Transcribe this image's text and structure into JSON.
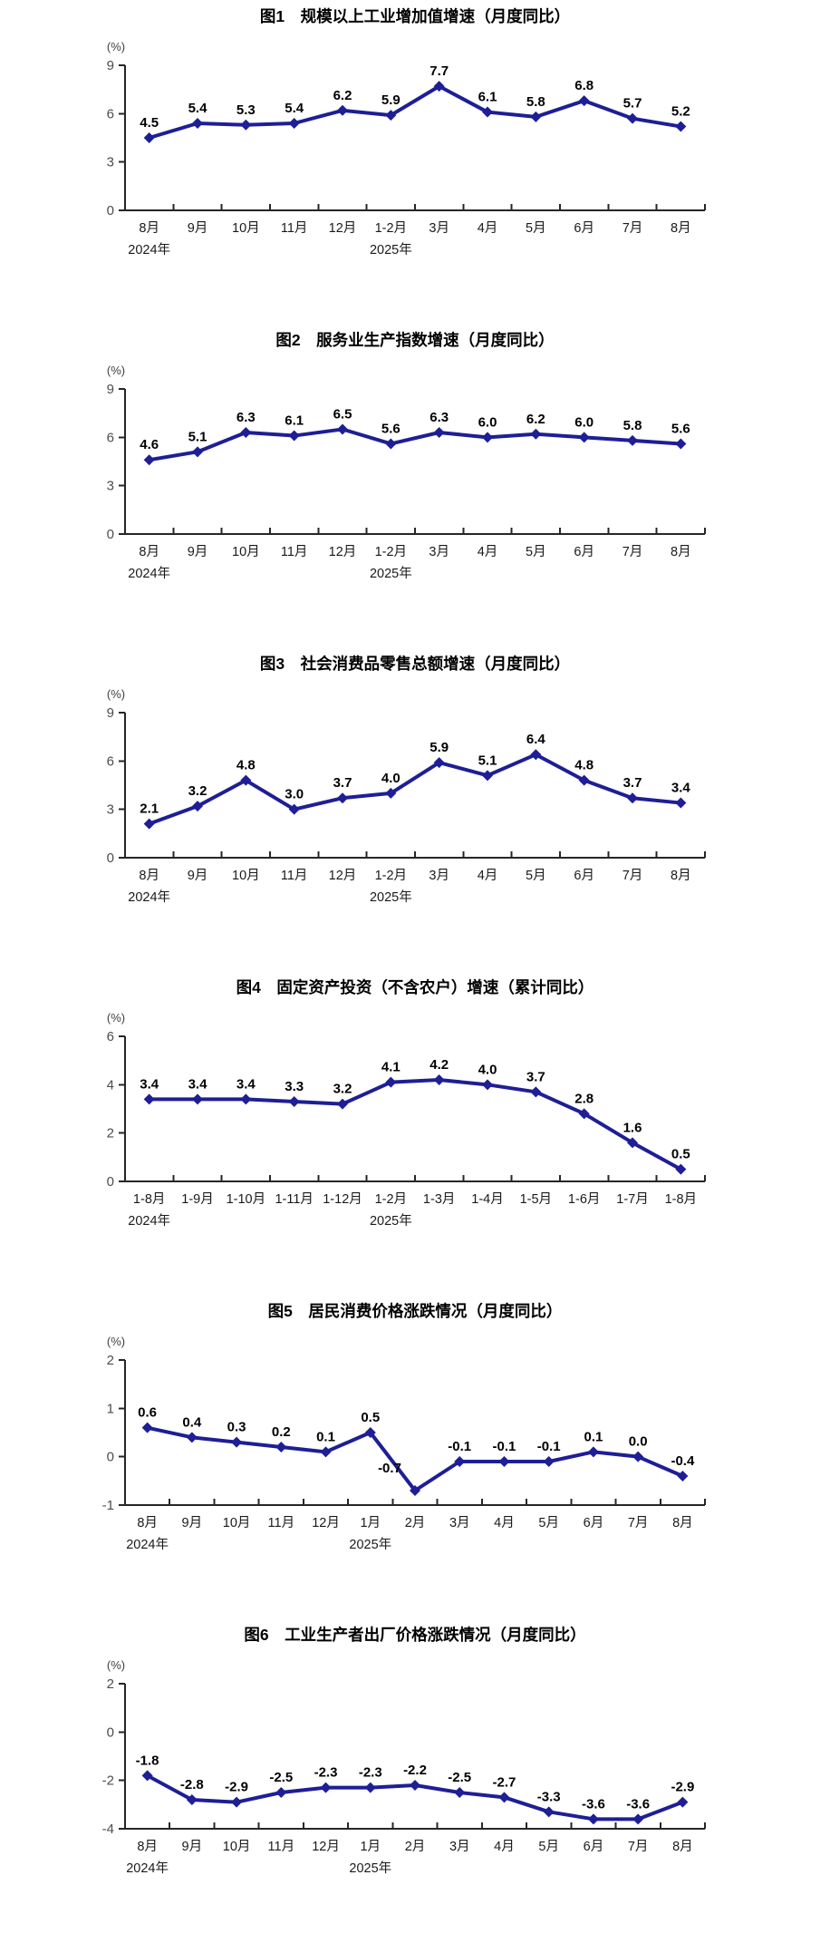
{
  "page": {
    "background": "#ffffff",
    "accent_line_color": "#1e1e96"
  },
  "chart_data": [
    {
      "type": "line",
      "title": "图1　规模以上工业增加值增速（月度同比）",
      "unit": "(%)",
      "categories": [
        "8月",
        "9月",
        "10月",
        "11月",
        "12月",
        "1-2月",
        "3月",
        "4月",
        "5月",
        "6月",
        "7月",
        "8月"
      ],
      "year_labels": [
        {
          "index": 0,
          "text": "2024年"
        },
        {
          "index": 5,
          "text": "2025年"
        }
      ],
      "values": [
        4.5,
        5.4,
        5.3,
        5.4,
        6.2,
        5.9,
        7.7,
        6.1,
        5.8,
        6.8,
        5.7,
        5.2
      ],
      "ylim": [
        0,
        9
      ],
      "yticks": [
        9,
        6,
        3,
        0
      ],
      "grid": false,
      "legend": "none",
      "line_color": "#1e1e96"
    },
    {
      "type": "line",
      "title": "图2　服务业生产指数增速（月度同比）",
      "unit": "(%)",
      "categories": [
        "8月",
        "9月",
        "10月",
        "11月",
        "12月",
        "1-2月",
        "3月",
        "4月",
        "5月",
        "6月",
        "7月",
        "8月"
      ],
      "year_labels": [
        {
          "index": 0,
          "text": "2024年"
        },
        {
          "index": 5,
          "text": "2025年"
        }
      ],
      "values": [
        4.6,
        5.1,
        6.3,
        6.1,
        6.5,
        5.6,
        6.3,
        6.0,
        6.2,
        6.0,
        5.8,
        5.6
      ],
      "ylim": [
        0,
        9
      ],
      "yticks": [
        9,
        6,
        3,
        0
      ],
      "grid": false,
      "legend": "none",
      "line_color": "#1e1e96"
    },
    {
      "type": "line",
      "title": "图3　社会消费品零售总额增速（月度同比）",
      "unit": "(%)",
      "categories": [
        "8月",
        "9月",
        "10月",
        "11月",
        "12月",
        "1-2月",
        "3月",
        "4月",
        "5月",
        "6月",
        "7月",
        "8月"
      ],
      "year_labels": [
        {
          "index": 0,
          "text": "2024年"
        },
        {
          "index": 5,
          "text": "2025年"
        }
      ],
      "values": [
        2.1,
        3.2,
        4.8,
        3.0,
        3.7,
        4.0,
        5.9,
        5.1,
        6.4,
        4.8,
        3.7,
        3.4
      ],
      "ylim": [
        0,
        9
      ],
      "yticks": [
        9,
        6,
        3,
        0
      ],
      "grid": false,
      "legend": "none",
      "line_color": "#1e1e96"
    },
    {
      "type": "line",
      "title": "图4　固定资产投资（不含农户）增速（累计同比）",
      "unit": "(%)",
      "categories": [
        "1-8月",
        "1-9月",
        "1-10月",
        "1-11月",
        "1-12月",
        "1-2月",
        "1-3月",
        "1-4月",
        "1-5月",
        "1-6月",
        "1-7月",
        "1-8月"
      ],
      "year_labels": [
        {
          "index": 0,
          "text": "2024年"
        },
        {
          "index": 5,
          "text": "2025年"
        }
      ],
      "values": [
        3.4,
        3.4,
        3.4,
        3.3,
        3.2,
        4.1,
        4.2,
        4.0,
        3.7,
        2.8,
        1.6,
        0.5
      ],
      "ylim": [
        0,
        6
      ],
      "yticks": [
        6,
        4,
        2,
        0
      ],
      "grid": false,
      "legend": "none",
      "line_color": "#1e1e96"
    },
    {
      "type": "line",
      "title": "图5　居民消费价格涨跌情况（月度同比）",
      "unit": "(%)",
      "categories": [
        "8月",
        "9月",
        "10月",
        "11月",
        "12月",
        "1月",
        "2月",
        "3月",
        "4月",
        "5月",
        "6月",
        "7月",
        "8月"
      ],
      "year_labels": [
        {
          "index": 0,
          "text": "2024年"
        },
        {
          "index": 5,
          "text": "2025年"
        }
      ],
      "values": [
        0.6,
        0.4,
        0.3,
        0.2,
        0.1,
        0.5,
        -0.7,
        -0.1,
        -0.1,
        -0.1,
        0.1,
        0.0,
        -0.4
      ],
      "ylim": [
        -1,
        2
      ],
      "yticks": [
        2,
        1,
        0,
        -1
      ],
      "label_offsets": {
        "6": [
          -28,
          -8
        ]
      },
      "grid": false,
      "legend": "none",
      "line_color": "#1e1e96"
    },
    {
      "type": "line",
      "title": "图6　工业生产者出厂价格涨跌情况（月度同比）",
      "unit": "(%)",
      "categories": [
        "8月",
        "9月",
        "10月",
        "11月",
        "12月",
        "1月",
        "2月",
        "3月",
        "4月",
        "5月",
        "6月",
        "7月",
        "8月"
      ],
      "year_labels": [
        {
          "index": 0,
          "text": "2024年"
        },
        {
          "index": 5,
          "text": "2025年"
        }
      ],
      "values": [
        -1.8,
        -2.8,
        -2.9,
        -2.5,
        -2.3,
        -2.3,
        -2.2,
        -2.5,
        -2.7,
        -3.3,
        -3.6,
        -3.6,
        -2.9
      ],
      "ylim": [
        -4,
        2
      ],
      "yticks": [
        2,
        0,
        -2,
        -4
      ],
      "grid": false,
      "legend": "none",
      "line_color": "#1e1e96"
    }
  ]
}
